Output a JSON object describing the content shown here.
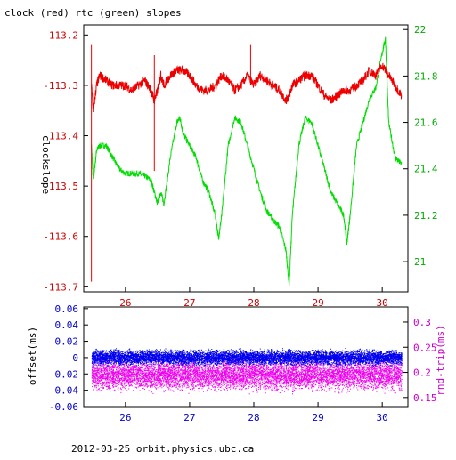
{
  "title": "clock (red) rtc (green) slopes",
  "footer": "2012-03-25 orbit.physics.ubc.ca",
  "colors": {
    "clock": "#ee0000",
    "rtc": "#00dd00",
    "offset": "#0000ee",
    "rndtrip": "#ee00ee",
    "axis_left_top": "#cc0000",
    "axis_right_top": "#00aa00",
    "axis_left_bottom": "#0000cc",
    "axis_right_bottom": "#cc00cc",
    "frame": "#000000"
  },
  "chart_data": [
    {
      "type": "line",
      "ylabel": "clockslope",
      "x_ticks": [
        "26",
        "27",
        "28",
        "29",
        "30"
      ],
      "x_tick_values": [
        26,
        27,
        28,
        29,
        30
      ],
      "xlim": [
        25.35,
        30.4
      ],
      "y_left_ticks": [
        "-113.2",
        "-113.3",
        "-113.4",
        "-113.5",
        "-113.6",
        "-113.7"
      ],
      "y_left_tick_values": [
        -113.2,
        -113.3,
        -113.4,
        -113.5,
        -113.6,
        -113.7
      ],
      "ylim_left": [
        -113.71,
        -113.18
      ],
      "y_right_ticks": [
        "22",
        "21.8",
        "21.6",
        "21.4",
        "21.2",
        "21"
      ],
      "y_right_tick_values": [
        22,
        21.8,
        21.6,
        21.4,
        21.2,
        21
      ],
      "ylim_right": [
        20.87,
        22.02
      ],
      "series": [
        {
          "key": "clock",
          "axis": "left",
          "x": [
            25.47,
            25.5,
            25.55,
            25.6,
            25.7,
            25.8,
            25.9,
            26.0,
            26.1,
            26.2,
            26.3,
            26.4,
            26.45,
            26.5,
            26.55,
            26.6,
            26.7,
            26.8,
            26.9,
            27.0,
            27.1,
            27.2,
            27.3,
            27.4,
            27.5,
            27.6,
            27.7,
            27.8,
            27.9,
            28.0,
            28.1,
            28.2,
            28.3,
            28.4,
            28.5,
            28.55,
            28.6,
            28.7,
            28.8,
            28.9,
            29.0,
            29.1,
            29.2,
            29.3,
            29.4,
            29.5,
            29.6,
            29.7,
            29.8,
            29.9,
            30.0,
            30.1,
            30.2,
            30.3
          ],
          "y": [
            -113.3,
            -113.35,
            -113.3,
            -113.28,
            -113.29,
            -113.3,
            -113.3,
            -113.3,
            -113.31,
            -113.3,
            -113.29,
            -113.31,
            -113.33,
            -113.31,
            -113.28,
            -113.3,
            -113.28,
            -113.27,
            -113.27,
            -113.28,
            -113.3,
            -113.31,
            -113.31,
            -113.3,
            -113.28,
            -113.29,
            -113.31,
            -113.3,
            -113.28,
            -113.3,
            -113.28,
            -113.29,
            -113.3,
            -113.31,
            -113.33,
            -113.32,
            -113.3,
            -113.29,
            -113.28,
            -113.28,
            -113.3,
            -113.32,
            -113.33,
            -113.32,
            -113.31,
            -113.31,
            -113.3,
            -113.29,
            -113.27,
            -113.28,
            -113.26,
            -113.28,
            -113.3,
            -113.32
          ]
        },
        {
          "key": "rtc",
          "axis": "right",
          "x": [
            25.47,
            25.5,
            25.55,
            25.6,
            25.7,
            25.8,
            25.9,
            26.0,
            26.1,
            26.2,
            26.3,
            26.4,
            26.45,
            26.5,
            26.55,
            26.6,
            26.7,
            26.8,
            26.85,
            26.9,
            27.0,
            27.1,
            27.2,
            27.3,
            27.4,
            27.45,
            27.5,
            27.6,
            27.7,
            27.8,
            27.9,
            28.0,
            28.1,
            28.2,
            28.3,
            28.4,
            28.5,
            28.55,
            28.6,
            28.7,
            28.8,
            28.9,
            29.0,
            29.1,
            29.2,
            29.3,
            29.4,
            29.45,
            29.5,
            29.6,
            29.7,
            29.8,
            29.9,
            30.0,
            30.05,
            30.1,
            30.2,
            30.3
          ],
          "y": [
            21.5,
            21.35,
            21.48,
            21.5,
            21.5,
            21.45,
            21.4,
            21.38,
            21.38,
            21.38,
            21.37,
            21.35,
            21.3,
            21.25,
            21.3,
            21.25,
            21.45,
            21.6,
            21.62,
            21.55,
            21.5,
            21.45,
            21.35,
            21.3,
            21.2,
            21.1,
            21.2,
            21.5,
            21.62,
            21.6,
            21.5,
            21.4,
            21.3,
            21.22,
            21.18,
            21.15,
            21.05,
            20.9,
            21.2,
            21.5,
            21.62,
            21.6,
            21.5,
            21.4,
            21.3,
            21.25,
            21.2,
            21.08,
            21.2,
            21.5,
            21.6,
            21.7,
            21.75,
            21.9,
            21.96,
            21.6,
            21.45,
            21.42
          ]
        }
      ]
    },
    {
      "type": "scatter",
      "ylabel_left": "offset(ms)",
      "ylabel_right": "rnd-trip(ms)",
      "x_ticks": [
        "26",
        "27",
        "28",
        "29",
        "30"
      ],
      "x_tick_values": [
        26,
        27,
        28,
        29,
        30
      ],
      "xlim": [
        25.35,
        30.4
      ],
      "y_left_ticks": [
        "0.06",
        "0.04",
        "0.02",
        "0",
        "-0.02",
        "-0.04",
        "-0.06"
      ],
      "y_left_tick_values": [
        0.06,
        0.04,
        0.02,
        0,
        -0.02,
        -0.04,
        -0.06
      ],
      "ylim_left": [
        -0.06,
        0.062
      ],
      "y_right_ticks": [
        "0.3",
        "0.25",
        "0.2",
        "0.15"
      ],
      "y_right_tick_values": [
        0.3,
        0.25,
        0.2,
        0.15
      ],
      "ylim_right": [
        0.132,
        0.33
      ],
      "series": [
        {
          "key": "offset",
          "axis": "left",
          "x_range": [
            25.47,
            30.3
          ],
          "center": 0.0,
          "spread": 0.012
        },
        {
          "key": "rndtrip",
          "axis": "right",
          "x_range": [
            25.47,
            30.3
          ],
          "center": 0.195,
          "spread": 0.04
        }
      ]
    }
  ]
}
